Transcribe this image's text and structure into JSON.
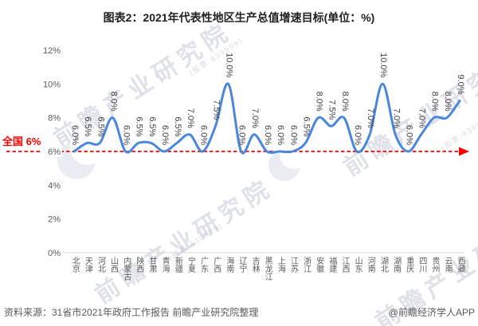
{
  "chart_data": {
    "type": "line",
    "smooth": true,
    "grid": false,
    "legend_position": "none",
    "title": "图表2：2021年代表性地区生产总值增速目标(单位：%)",
    "categories": [
      "北京",
      "天津",
      "河北",
      "山西",
      "内蒙古",
      "陕西",
      "甘肃",
      "青海",
      "新疆",
      "宁夏",
      "广东",
      "广西",
      "海南",
      "辽宁",
      "吉林",
      "黑龙江",
      "上海",
      "江苏",
      "浙江",
      "安徽",
      "福建",
      "江西",
      "山东",
      "河南",
      "湖北",
      "湖南",
      "重庆",
      "四川",
      "贵州",
      "云南",
      "西藏"
    ],
    "values": [
      6.0,
      6.5,
      6.5,
      8.0,
      6.0,
      6.5,
      6.5,
      6.0,
      6.5,
      7.0,
      6.0,
      7.5,
      10.0,
      6.0,
      7.0,
      6.0,
      6.0,
      6.0,
      6.5,
      8.0,
      7.5,
      8.0,
      6.0,
      7.0,
      10.0,
      7.0,
      6.0,
      7.0,
      8.0,
      8.0,
      9.0
    ],
    "point_labels": [
      "6.0%",
      "6.5%",
      "6.5%",
      "8.0%",
      "6.0%",
      "6.5%",
      "6.5%",
      "6.0%",
      "6.5%",
      "7.0%",
      "6.0%",
      "7.5%",
      "10.0%",
      "6.0%",
      "7.0%",
      "6.0%",
      "6.0%",
      "6.0%",
      "6.5%",
      "8.0%",
      "7.5%",
      "8.0%",
      "6.0%",
      "7.0%",
      "10.0%",
      "7.0%",
      "6.0%",
      "7.0%",
      "8.0%",
      "8.0%",
      "9.0%"
    ],
    "ylim": [
      0,
      12
    ],
    "y_ticks": {
      "values": [
        12,
        10,
        8,
        6,
        4,
        2,
        0
      ],
      "labels": [
        "12%",
        "10%",
        "8%",
        "6%",
        "4%",
        "2%",
        "0%"
      ]
    },
    "reference_line": {
      "value": 6,
      "label": "全国 6%",
      "color": "#ff0000"
    },
    "line_color": "#4b86dd",
    "label_color": "#3f3f3f",
    "tick_color": "#595959",
    "axis_color": "#d9d9d9"
  },
  "footer": {
    "source": "资料来源：31省市2021年政府工作报告 前瞻产业研究院整理",
    "credit": "@前瞻经济学人APP"
  },
  "watermark": {
    "text": "前瞻产业研究院",
    "stock": "(股票:839599)"
  }
}
